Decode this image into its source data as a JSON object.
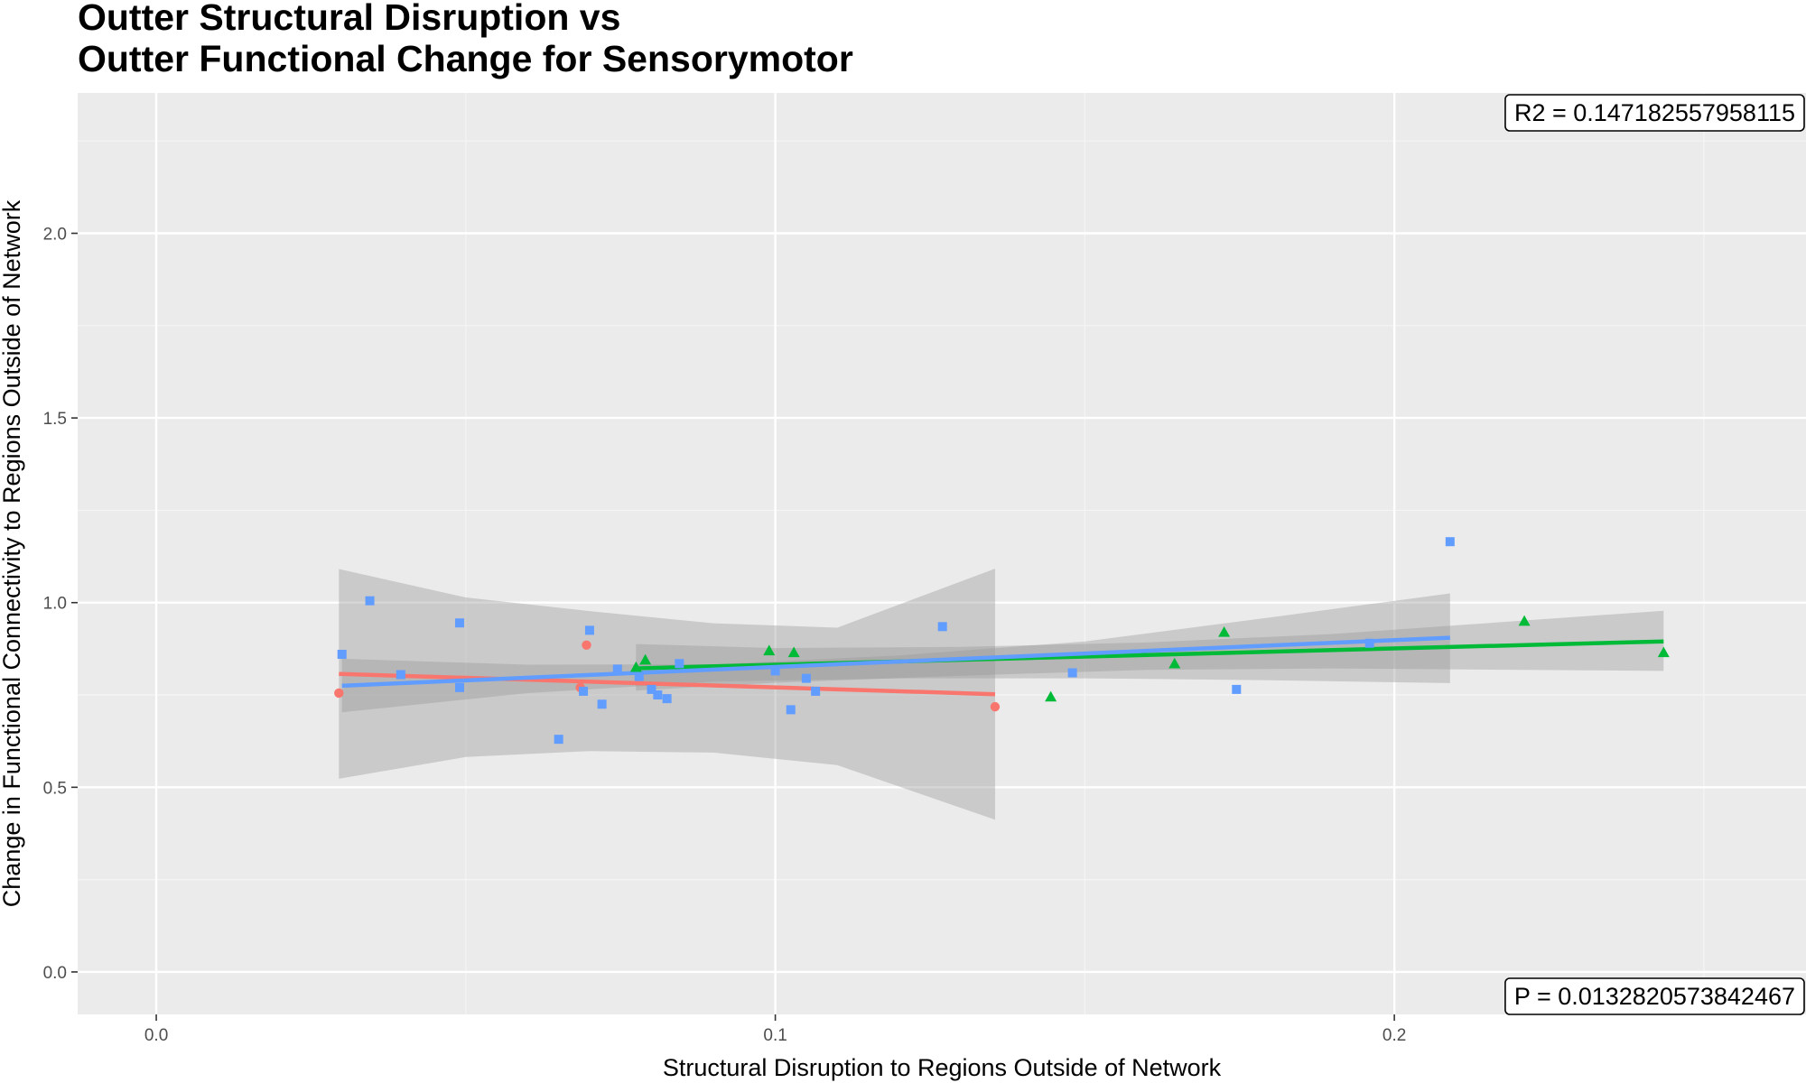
{
  "chart_data": {
    "type": "scatter",
    "title_lines": [
      "Outter Structural Disruption vs",
      "Outter Functional Change for Sensorymotor"
    ],
    "xlabel": "Structural Disruption to Regions Outside of Network",
    "ylabel": "Change in Functional Connectivity to Regions Outside of Network",
    "xlim": [
      -0.0127,
      0.2665
    ],
    "ylim": [
      -0.115,
      2.38
    ],
    "x_ticks": [
      0.0,
      0.1,
      0.2
    ],
    "x_tick_labels": [
      "0.0",
      "0.1",
      "0.2"
    ],
    "y_ticks": [
      0.0,
      0.5,
      1.0,
      1.5,
      2.0
    ],
    "y_tick_labels": [
      "0.0",
      "0.5",
      "1.0",
      "1.5",
      "2.0"
    ],
    "grid": true,
    "legend": "none",
    "annotations": {
      "r2": "R2 =  0.147182557958115",
      "p": "P =  0.0132820573842467"
    },
    "series": [
      {
        "color": "#F8766D",
        "shape": "circle",
        "points": [
          {
            "x": 0.0295,
            "y": 0.755
          },
          {
            "x": 0.0685,
            "y": 0.77
          },
          {
            "x": 0.0695,
            "y": 0.885
          },
          {
            "x": 0.1355,
            "y": 0.718
          }
        ],
        "fit": {
          "x": [
            0.0295,
            0.1355
          ],
          "y": [
            0.807,
            0.752
          ]
        },
        "band": {
          "x": [
            0.0295,
            0.05,
            0.07,
            0.09,
            0.11,
            0.1355
          ],
          "lower": [
            0.523,
            0.582,
            0.598,
            0.594,
            0.56,
            0.412
          ],
          "upper": [
            1.091,
            1.014,
            0.977,
            0.944,
            0.932,
            1.092
          ]
        }
      },
      {
        "color": "#00BA38",
        "shape": "triangle",
        "points": [
          {
            "x": 0.0775,
            "y": 0.825
          },
          {
            "x": 0.079,
            "y": 0.845
          },
          {
            "x": 0.099,
            "y": 0.87
          },
          {
            "x": 0.103,
            "y": 0.865
          },
          {
            "x": 0.1445,
            "y": 0.745
          },
          {
            "x": 0.1645,
            "y": 0.835
          },
          {
            "x": 0.1725,
            "y": 0.92
          },
          {
            "x": 0.221,
            "y": 0.95
          },
          {
            "x": 0.2435,
            "y": 0.865
          }
        ],
        "fit": {
          "x": [
            0.0775,
            0.2435
          ],
          "y": [
            0.822,
            0.895
          ]
        },
        "band": {
          "x": [
            0.0775,
            0.1,
            0.13,
            0.16,
            0.19,
            0.2435
          ],
          "lower": [
            0.762,
            0.783,
            0.802,
            0.818,
            0.822,
            0.815
          ],
          "upper": [
            0.888,
            0.877,
            0.88,
            0.892,
            0.915,
            0.978
          ]
        }
      },
      {
        "color": "#619CFF",
        "shape": "square",
        "points": [
          {
            "x": 0.03,
            "y": 0.86
          },
          {
            "x": 0.0345,
            "y": 1.005
          },
          {
            "x": 0.0395,
            "y": 0.805
          },
          {
            "x": 0.049,
            "y": 0.945
          },
          {
            "x": 0.049,
            "y": 0.77
          },
          {
            "x": 0.065,
            "y": 0.63
          },
          {
            "x": 0.069,
            "y": 0.76
          },
          {
            "x": 0.07,
            "y": 0.925
          },
          {
            "x": 0.072,
            "y": 0.725
          },
          {
            "x": 0.0745,
            "y": 0.82
          },
          {
            "x": 0.078,
            "y": 0.8
          },
          {
            "x": 0.08,
            "y": 0.765
          },
          {
            "x": 0.081,
            "y": 0.75
          },
          {
            "x": 0.0825,
            "y": 0.74
          },
          {
            "x": 0.0845,
            "y": 0.835
          },
          {
            "x": 0.1,
            "y": 0.815
          },
          {
            "x": 0.1025,
            "y": 0.71
          },
          {
            "x": 0.105,
            "y": 0.795
          },
          {
            "x": 0.1065,
            "y": 0.76
          },
          {
            "x": 0.127,
            "y": 0.935
          },
          {
            "x": 0.148,
            "y": 0.81
          },
          {
            "x": 0.1745,
            "y": 0.765
          },
          {
            "x": 0.196,
            "y": 0.89
          },
          {
            "x": 0.209,
            "y": 1.165
          }
        ],
        "fit": {
          "x": [
            0.03,
            0.209
          ],
          "y": [
            0.775,
            0.905
          ]
        },
        "band": {
          "x": [
            0.03,
            0.06,
            0.09,
            0.12,
            0.15,
            0.18,
            0.209
          ],
          "lower": [
            0.703,
            0.755,
            0.786,
            0.795,
            0.795,
            0.79,
            0.782
          ],
          "upper": [
            0.848,
            0.832,
            0.833,
            0.857,
            0.895,
            0.96,
            1.025
          ]
        }
      }
    ]
  }
}
